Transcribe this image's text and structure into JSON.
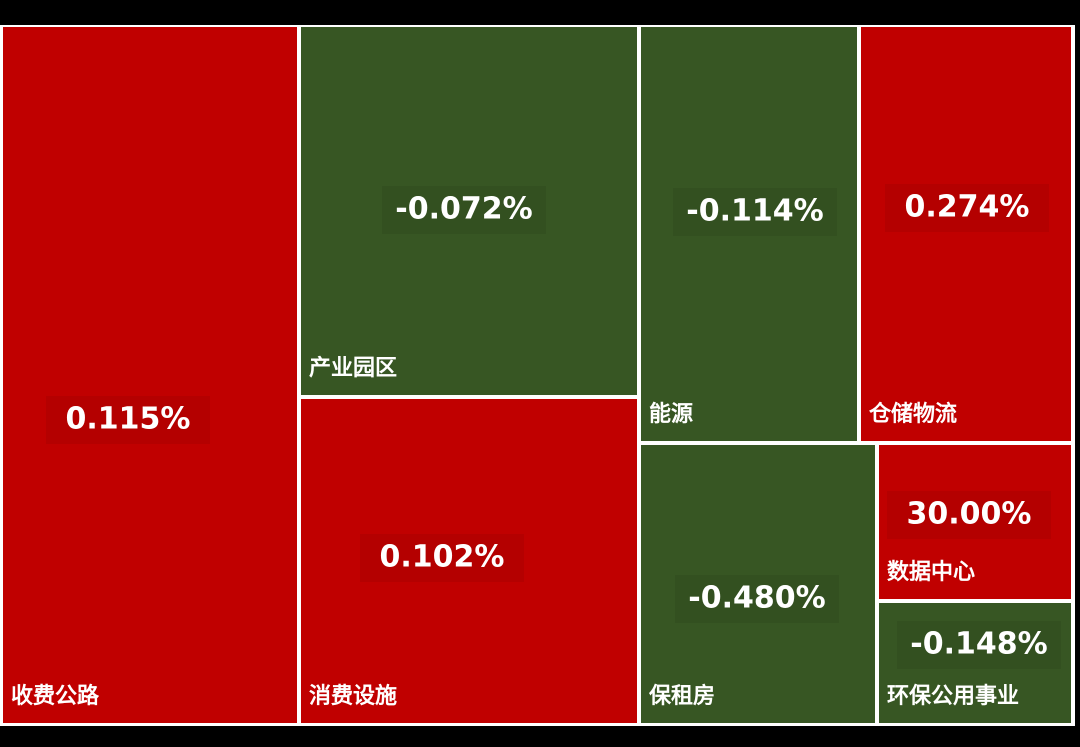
{
  "chart_data": {
    "type": "treemap",
    "categories": [
      "收费公路",
      "产业园区",
      "消费设施",
      "能源",
      "仓储物流",
      "保租房",
      "数据中心",
      "环保公用事业"
    ],
    "values": [
      0.115,
      -0.072,
      0.102,
      -0.114,
      0.274,
      -0.48,
      30.0,
      -0.148
    ],
    "value_labels": [
      "0.115%",
      "-0.072%",
      "0.102%",
      "-0.114%",
      "0.274%",
      "-0.480%",
      "30.00%",
      "-0.148%"
    ],
    "positive_color": "#c00000",
    "negative_color": "#375623"
  }
}
